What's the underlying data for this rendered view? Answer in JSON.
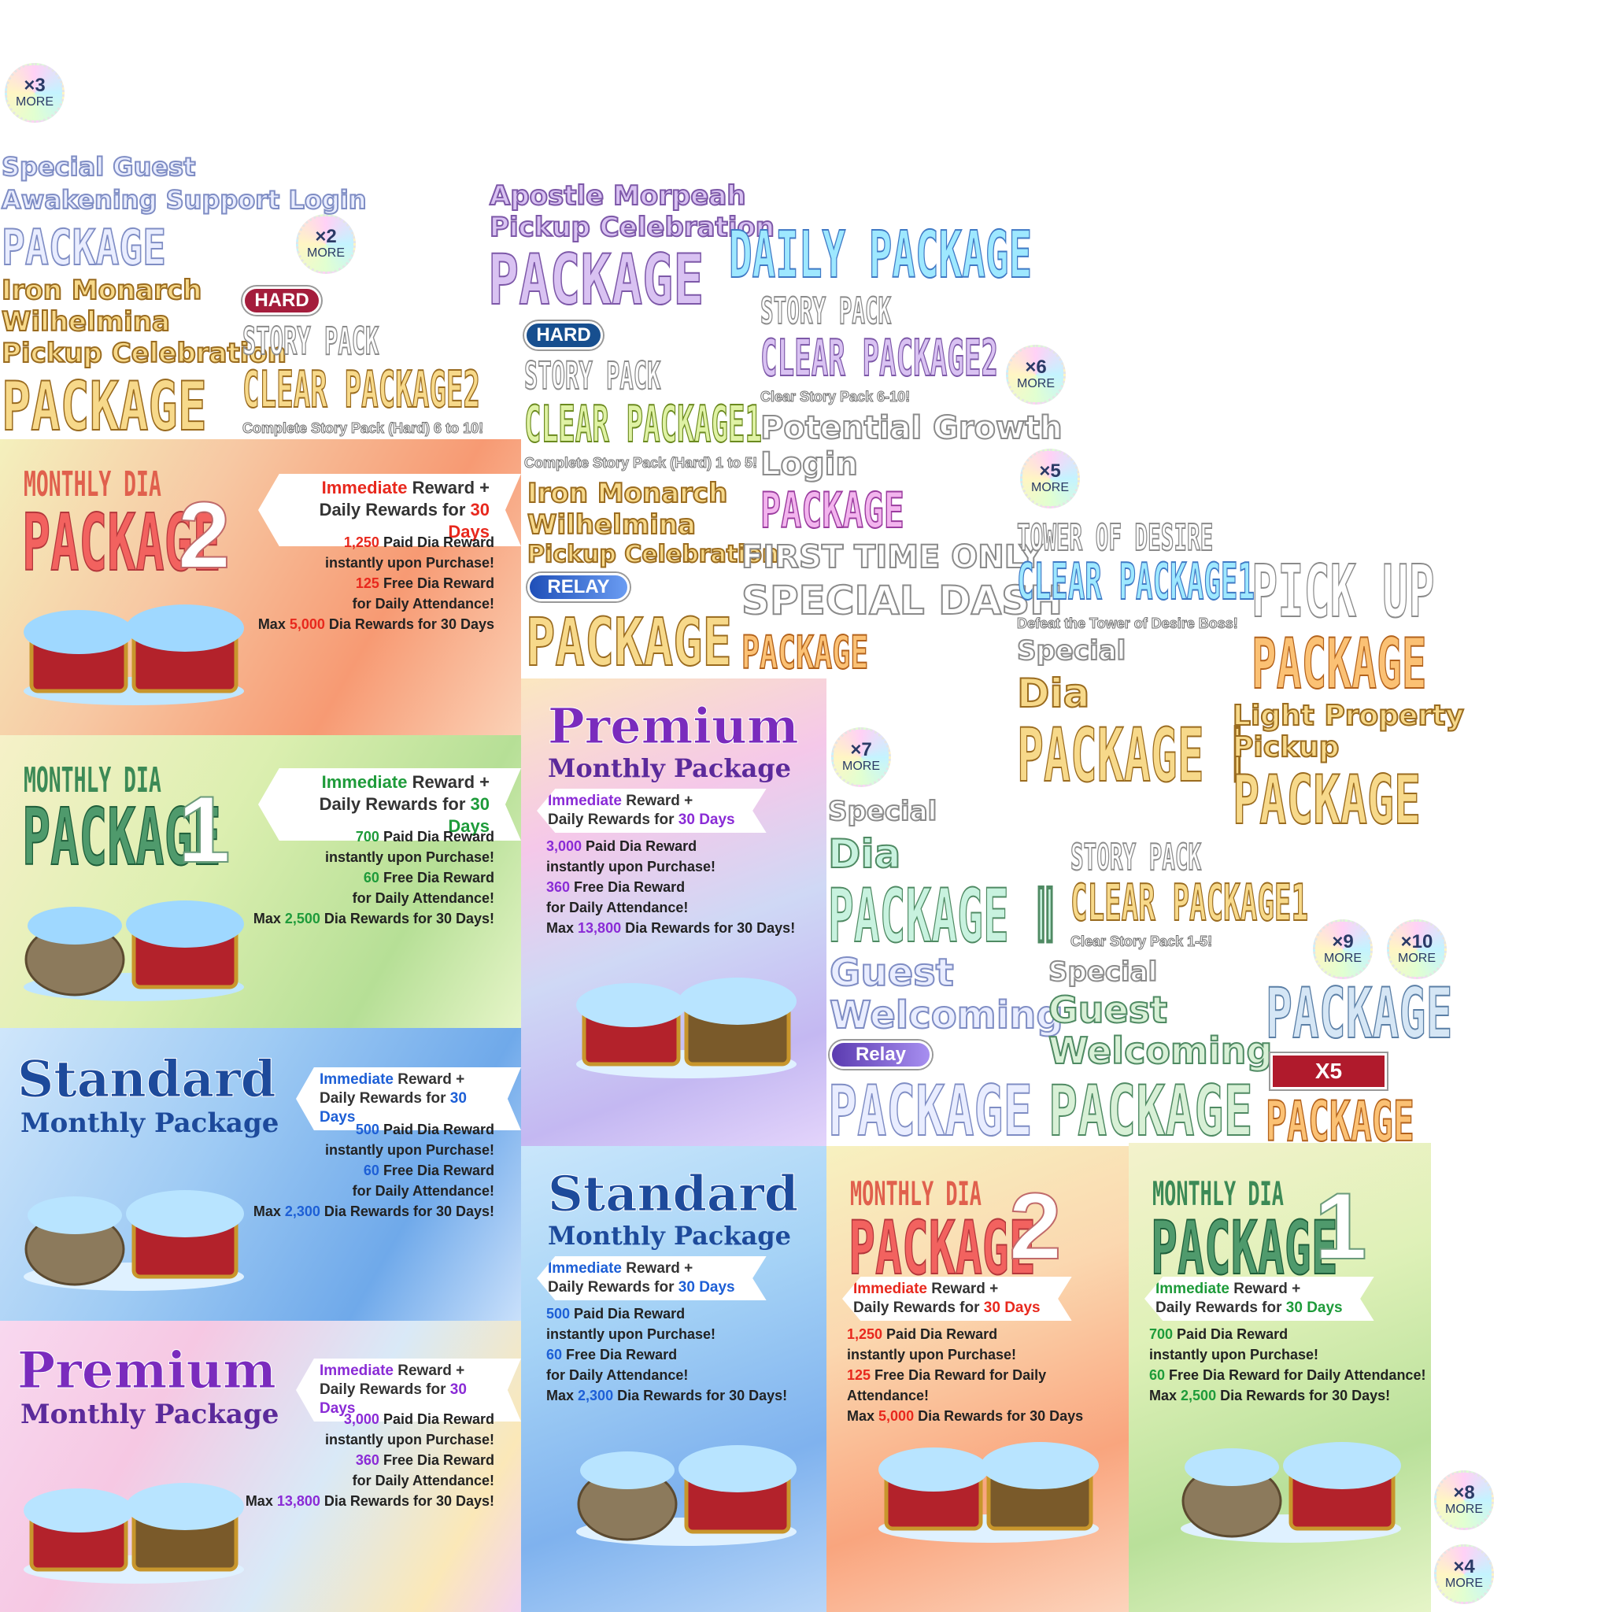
{
  "badges": {
    "b3": {
      "x": "×3",
      "m": "MORE"
    },
    "b2": {
      "x": "×2",
      "m": "MORE"
    },
    "b6": {
      "x": "×6",
      "m": "MORE"
    },
    "b5": {
      "x": "×5",
      "m": "MORE"
    },
    "b7": {
      "x": "×7",
      "m": "MORE"
    },
    "b9": {
      "x": "×9",
      "m": "MORE"
    },
    "b10": {
      "x": "×10",
      "m": "MORE"
    },
    "b8": {
      "x": "×8",
      "m": "MORE"
    },
    "b4": {
      "x": "×4",
      "m": "MORE"
    }
  },
  "titles": {
    "guest_login": {
      "l1": "Special Guest",
      "l2": "Awakening Support Login",
      "l3": "PACKAGE"
    },
    "iron_left": {
      "l1": "Iron Monarch",
      "l2": "Wilhelmina",
      "l3": "Pickup Celebration",
      "l4": "PACKAGE"
    },
    "hard2": {
      "tag": "HARD",
      "l1": "STORY PACK",
      "l2": "CLEAR PACKAGE2",
      "sub": "Complete Story Pack (Hard) 6 to 10!"
    },
    "apostle": {
      "l1": "Apostle Morpeah",
      "l2": "Pickup Celebration",
      "l3": "PACKAGE"
    },
    "hard1": {
      "tag": "HARD",
      "l1": "STORY PACK",
      "l2": "CLEAR PACKAGE1",
      "sub": "Complete Story Pack (Hard) 1 to 5!"
    },
    "iron_mid": {
      "l1": "Iron Monarch",
      "l2": "Wilhelmina",
      "l3": "Pickup Celebration",
      "tag": "RELAY",
      "l4": "PACKAGE"
    },
    "daily": {
      "l1": "DAILY PACKAGE"
    },
    "story2": {
      "l1": "STORY PACK",
      "l2": "CLEAR PACKAGE2",
      "sub": "Clear Story Pack 6-10!"
    },
    "potential": {
      "l1": "Potential Growth",
      "l2": "Login",
      "l3": "PACKAGE"
    },
    "first_time": {
      "l1": "FIRST TIME ONLY",
      "l2": "SPECIAL DASH",
      "l3": "PACKAGE"
    },
    "tower": {
      "l1": "TOWER OF DESIRE",
      "l2": "CLEAR PACKAGE1",
      "sub": "Defeat the Tower of Desire Boss!"
    },
    "pickup": {
      "l1": "PICK UP",
      "l2": "PACKAGE"
    },
    "dia1": {
      "l1": "Special",
      "l2": "Dia",
      "l3": "PACKAGE Ⅰ"
    },
    "light": {
      "l1": "Light Property",
      "l2": "Pickup",
      "l3": "PACKAGE"
    },
    "dia2": {
      "l1": "Special",
      "l2": "Dia",
      "l3": "PACKAGE Ⅱ"
    },
    "story1": {
      "l1": "STORY PACK",
      "l2": "CLEAR PACKAGE1",
      "sub": "Clear Story Pack 1-5!"
    },
    "guest_relay": {
      "l1": "Guest",
      "l2": "Welcoming",
      "tag": "Relay",
      "l3": "PACKAGE"
    },
    "guest_special": {
      "l1": "Special",
      "l2": "Guest",
      "l3": "Welcoming",
      "l4": "PACKAGE"
    },
    "x5pkg": {
      "l1": "PACKAGE",
      "tag": "X5",
      "l2": "PACKAGE"
    }
  },
  "cards": {
    "dia2_left": {
      "title_top": "MONTHLY DIA",
      "title_main": "PACKAGE",
      "num": "2",
      "pill1a": "Immediate",
      "pill1b": " Reward +",
      "pill2a": "Daily Rewards for ",
      "pill2b": "30 Days",
      "d1n": "1,250",
      "d1": " Paid Dia Reward",
      "d2": "instantly upon Purchase!",
      "d3n": "125",
      "d3": " Free Dia Reward",
      "d4": "for Daily Attendance!",
      "d5a": "Max ",
      "d5n": "5,000",
      "d5": " Dia Rewards for 30 Days"
    },
    "dia1_left": {
      "title_top": "MONTHLY DIA",
      "title_main": "PACKAGE",
      "num": "1",
      "pill1a": "Immediate",
      "pill1b": " Reward +",
      "pill2a": "Daily Rewards for ",
      "pill2b": "30 Days",
      "d1n": "700",
      "d1": " Paid Dia Reward",
      "d2": "instantly upon Purchase!",
      "d3n": "60",
      "d3": " Free Dia Reward",
      "d4": "for Daily Attendance!",
      "d5a": "Max ",
      "d5n": "2,500",
      "d5": " Dia Rewards for 30 Days!"
    },
    "std_left": {
      "title_top": "Standard",
      "title_main": "Monthly Package",
      "pill1a": "Immediate",
      "pill1b": " Reward +",
      "pill2a": "Daily Rewards for ",
      "pill2b": "30 Days",
      "d1n": "500",
      "d1": " Paid Dia Reward",
      "d2": "instantly upon Purchase!",
      "d3n": "60",
      "d3": " Free Dia Reward",
      "d4": "for Daily Attendance!",
      "d5a": "Max ",
      "d5n": "2,300",
      "d5": " Dia Rewards for 30 Days!"
    },
    "prem_left": {
      "title_top": "Premium",
      "title_main": "Monthly Package",
      "pill1a": "Immediate",
      "pill1b": " Reward +",
      "pill2a": "Daily Rewards for ",
      "pill2b": "30 Days",
      "d1n": "3,000",
      "d1": " Paid Dia Reward",
      "d2": "instantly upon Purchase!",
      "d3n": "360",
      "d3": " Free Dia Reward",
      "d4": "for Daily Attendance!",
      "d5a": "Max ",
      "d5n": "13,800",
      "d5": " Dia Rewards for 30 Days!"
    },
    "prem_mid": {
      "title_top": "Premium",
      "title_main": "Monthly Package",
      "pill1a": "Immediate",
      "pill1b": " Reward +",
      "pill2a": "Daily Rewards for ",
      "pill2b": "30 Days",
      "d1n": "3,000",
      "d1": " Paid Dia Reward",
      "d2": "instantly upon Purchase!",
      "d3n": "360",
      "d3": " Free Dia Reward",
      "d4": "for Daily Attendance!",
      "d5a": "Max ",
      "d5n": "13,800",
      "d5": " Dia Rewards for 30 Days!"
    },
    "std_mid": {
      "title_top": "Standard",
      "title_main": "Monthly Package",
      "pill1a": "Immediate",
      "pill1b": " Reward +",
      "pill2a": "Daily Rewards for ",
      "pill2b": "30 Days",
      "d1n": "500",
      "d1": " Paid Dia Reward",
      "d2": "instantly upon Purchase!",
      "d3n": "60",
      "d3": " Free Dia Reward",
      "d4": "for Daily Attendance!",
      "d5a": "Max ",
      "d5n": "2,300",
      "d5": " Dia Rewards for 30 Days!"
    },
    "dia2_bot": {
      "title_top": "MONTHLY DIA",
      "title_main": "PACKAGE",
      "num": "2",
      "pill1a": "Immediate",
      "pill1b": " Reward +",
      "pill2a": "Daily Rewards for ",
      "pill2b": "30 Days",
      "d1n": "1,250",
      "d1": " Paid Dia Reward",
      "d2": "instantly upon Purchase!",
      "d3n": "125",
      "d3": " Free Dia Reward for Daily Attendance!",
      "d5a": "Max ",
      "d5n": "5,000",
      "d5": " Dia Rewards for 30 Days"
    },
    "dia1_bot": {
      "title_top": "MONTHLY DIA",
      "title_main": "PACKAGE",
      "num": "1",
      "pill1a": "Immediate",
      "pill1b": " Reward +",
      "pill2a": "Daily Rewards for ",
      "pill2b": "30 Days",
      "d1n": "700",
      "d1": " Paid Dia Reward",
      "d2": "instantly upon Purchase!",
      "d3n": "60",
      "d3": " Free Dia Reward for Daily Attendance!",
      "d5a": "Max ",
      "d5n": "2,500",
      "d5": " Dia Rewards for 30 Days!"
    }
  },
  "colors": {
    "orange_accent": "#e8281d",
    "green_accent": "#1e9b3a",
    "blue_accent": "#1d5fd6",
    "purple_accent": "#8a2bd6"
  }
}
